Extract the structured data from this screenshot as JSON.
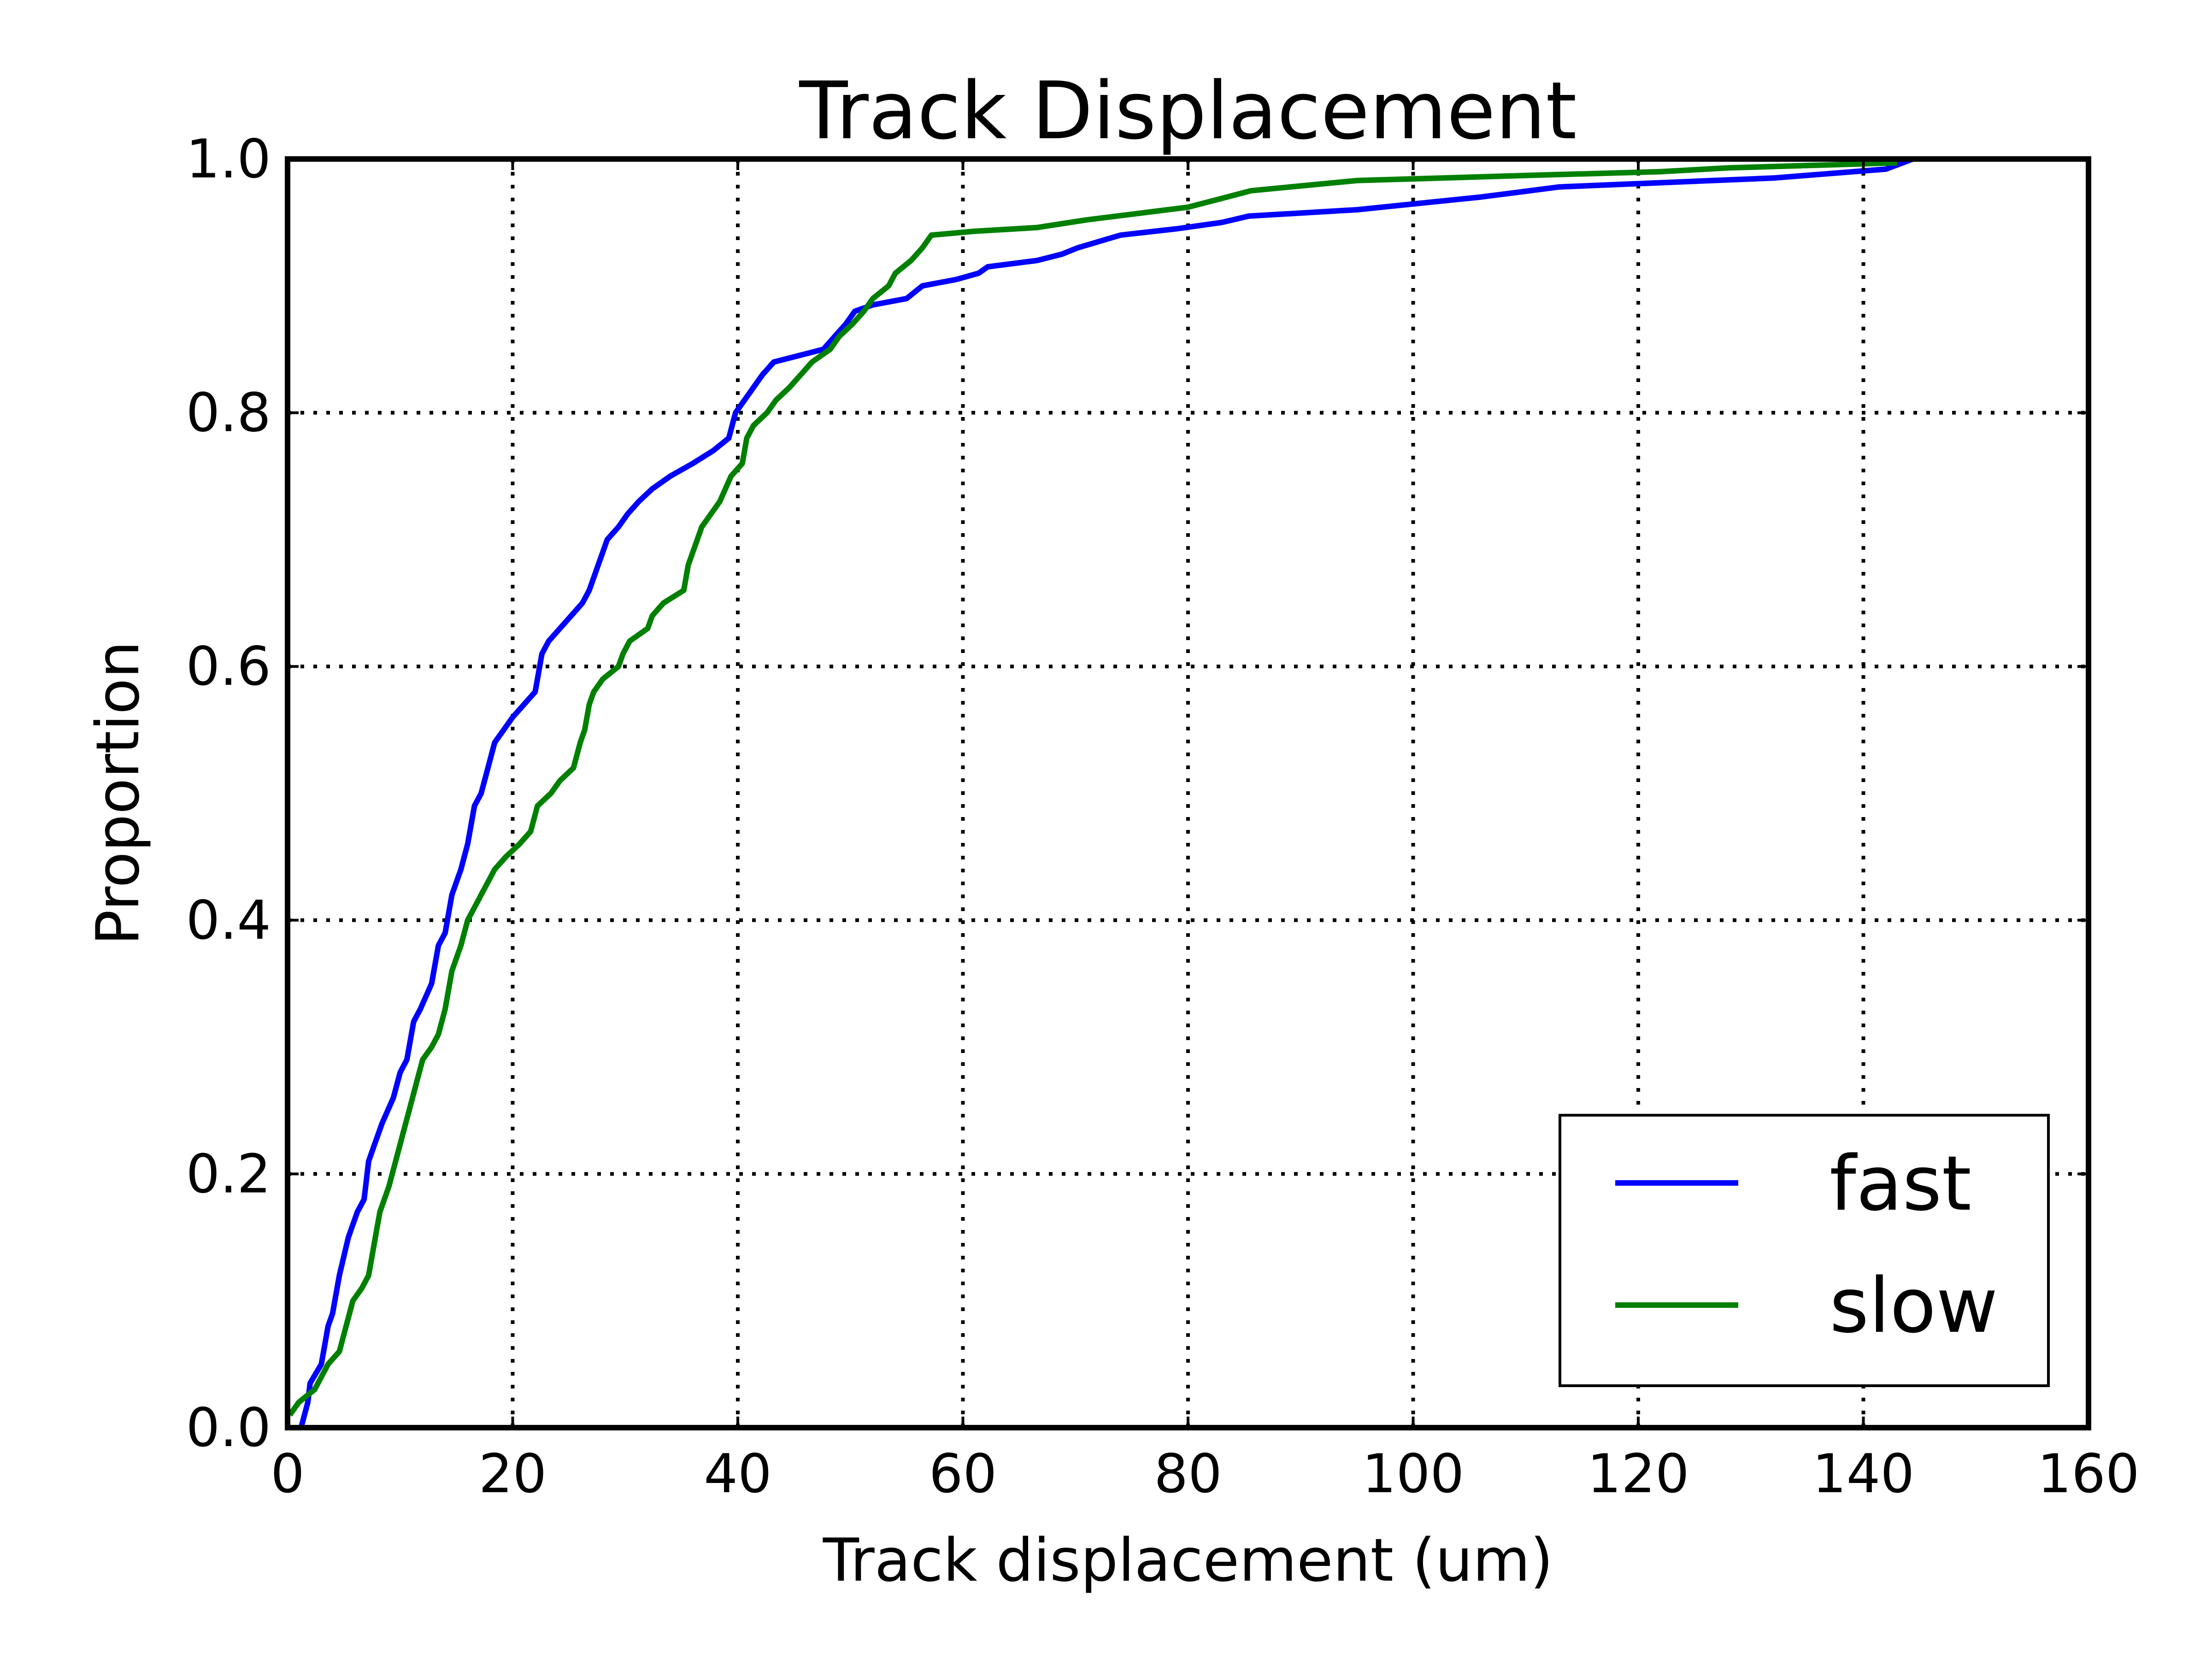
{
  "chart_data": {
    "type": "line",
    "title": "Track Displacement",
    "xlabel": "Track displacement (um)",
    "ylabel": "Proportion",
    "xlim": [
      0,
      160
    ],
    "ylim": [
      0,
      1.0
    ],
    "xticks": [
      0,
      20,
      40,
      60,
      80,
      100,
      120,
      140,
      160
    ],
    "yticks": [
      0.0,
      0.2,
      0.4,
      0.6,
      0.8,
      1.0
    ],
    "xtick_labels": [
      "0",
      "20",
      "40",
      "60",
      "80",
      "100",
      "120",
      "140",
      "160"
    ],
    "ytick_labels": [
      "0.0",
      "0.2",
      "0.4",
      "0.6",
      "0.8",
      "1.0"
    ],
    "grid": true,
    "legend_position": "bottom-right",
    "series": [
      {
        "name": "fast",
        "color": "#0000ff",
        "x": [
          1.2,
          1.8,
          2.0,
          3.0,
          3.6,
          4.0,
          4.6,
          5.4,
          6.2,
          6.8,
          7.2,
          7.6,
          8.4,
          9.4,
          10.0,
          10.6,
          11.2,
          11.8,
          12.8,
          13.4,
          14.0,
          14.6,
          15.4,
          16.0,
          16.6,
          17.2,
          17.8,
          18.4,
          19.2,
          20.0,
          21.0,
          22.0,
          22.6,
          23.2,
          24.2,
          25.2,
          26.2,
          26.8,
          27.6,
          28.4,
          29.4,
          30.2,
          31.2,
          32.4,
          34.0,
          36.0,
          37.8,
          39.2,
          39.8,
          40.6,
          41.4,
          42.2,
          43.2,
          47.6,
          48.6,
          49.6,
          50.4,
          52.0,
          55.0,
          56.4,
          59.4,
          61.4,
          62.2,
          66.6,
          68.8,
          70.2,
          74.0,
          79.0,
          83.0,
          85.4,
          95.0,
          106.0,
          113.0,
          132.0,
          142.0,
          144.4
        ],
        "y": [
          0.0,
          0.02,
          0.035,
          0.05,
          0.08,
          0.09,
          0.12,
          0.15,
          0.17,
          0.18,
          0.21,
          0.22,
          0.24,
          0.26,
          0.28,
          0.29,
          0.32,
          0.33,
          0.35,
          0.38,
          0.39,
          0.42,
          0.44,
          0.46,
          0.49,
          0.5,
          0.52,
          0.54,
          0.55,
          0.56,
          0.57,
          0.58,
          0.61,
          0.62,
          0.63,
          0.64,
          0.65,
          0.66,
          0.68,
          0.7,
          0.71,
          0.72,
          0.73,
          0.74,
          0.75,
          0.76,
          0.77,
          0.78,
          0.8,
          0.81,
          0.82,
          0.83,
          0.84,
          0.85,
          0.86,
          0.87,
          0.88,
          0.885,
          0.89,
          0.9,
          0.905,
          0.91,
          0.915,
          0.92,
          0.925,
          0.93,
          0.94,
          0.945,
          0.95,
          0.955,
          0.96,
          0.97,
          0.978,
          0.985,
          0.992,
          1.0
        ]
      },
      {
        "name": "slow",
        "color": "#008000",
        "x": [
          0.2,
          1.0,
          2.4,
          3.0,
          3.6,
          4.6,
          5.2,
          5.8,
          6.6,
          7.2,
          7.6,
          8.2,
          9.0,
          9.6,
          10.2,
          10.8,
          11.4,
          12.0,
          12.8,
          13.4,
          14.0,
          14.6,
          15.4,
          16.0,
          16.6,
          17.2,
          17.8,
          18.4,
          19.4,
          20.6,
          21.6,
          22.2,
          23.4,
          24.2,
          25.4,
          26.0,
          26.4,
          26.8,
          27.2,
          28.0,
          29.4,
          29.8,
          30.4,
          32.0,
          32.4,
          33.4,
          35.2,
          35.6,
          36.4,
          36.8,
          37.6,
          38.4,
          39.4,
          40.4,
          40.8,
          41.4,
          42.6,
          43.4,
          44.6,
          45.6,
          46.6,
          48.2,
          49.0,
          50.2,
          51.2,
          52.0,
          53.4,
          54.0,
          55.4,
          56.4,
          57.2,
          61.0,
          66.6,
          71.0,
          80.0,
          82.6,
          85.6,
          95.0,
          110.0,
          122.0,
          128.0,
          143.0
        ],
        "y": [
          0.01,
          0.02,
          0.03,
          0.04,
          0.05,
          0.06,
          0.08,
          0.1,
          0.11,
          0.12,
          0.14,
          0.17,
          0.19,
          0.21,
          0.23,
          0.25,
          0.27,
          0.29,
          0.3,
          0.31,
          0.33,
          0.36,
          0.38,
          0.4,
          0.41,
          0.42,
          0.43,
          0.44,
          0.45,
          0.46,
          0.47,
          0.49,
          0.5,
          0.51,
          0.52,
          0.54,
          0.55,
          0.57,
          0.58,
          0.59,
          0.6,
          0.61,
          0.62,
          0.63,
          0.64,
          0.65,
          0.66,
          0.68,
          0.7,
          0.71,
          0.72,
          0.73,
          0.75,
          0.76,
          0.78,
          0.79,
          0.8,
          0.81,
          0.82,
          0.83,
          0.84,
          0.85,
          0.86,
          0.87,
          0.88,
          0.89,
          0.9,
          0.91,
          0.92,
          0.93,
          0.94,
          0.943,
          0.946,
          0.952,
          0.962,
          0.968,
          0.975,
          0.983,
          0.987,
          0.99,
          0.993,
          0.997
        ]
      }
    ]
  }
}
